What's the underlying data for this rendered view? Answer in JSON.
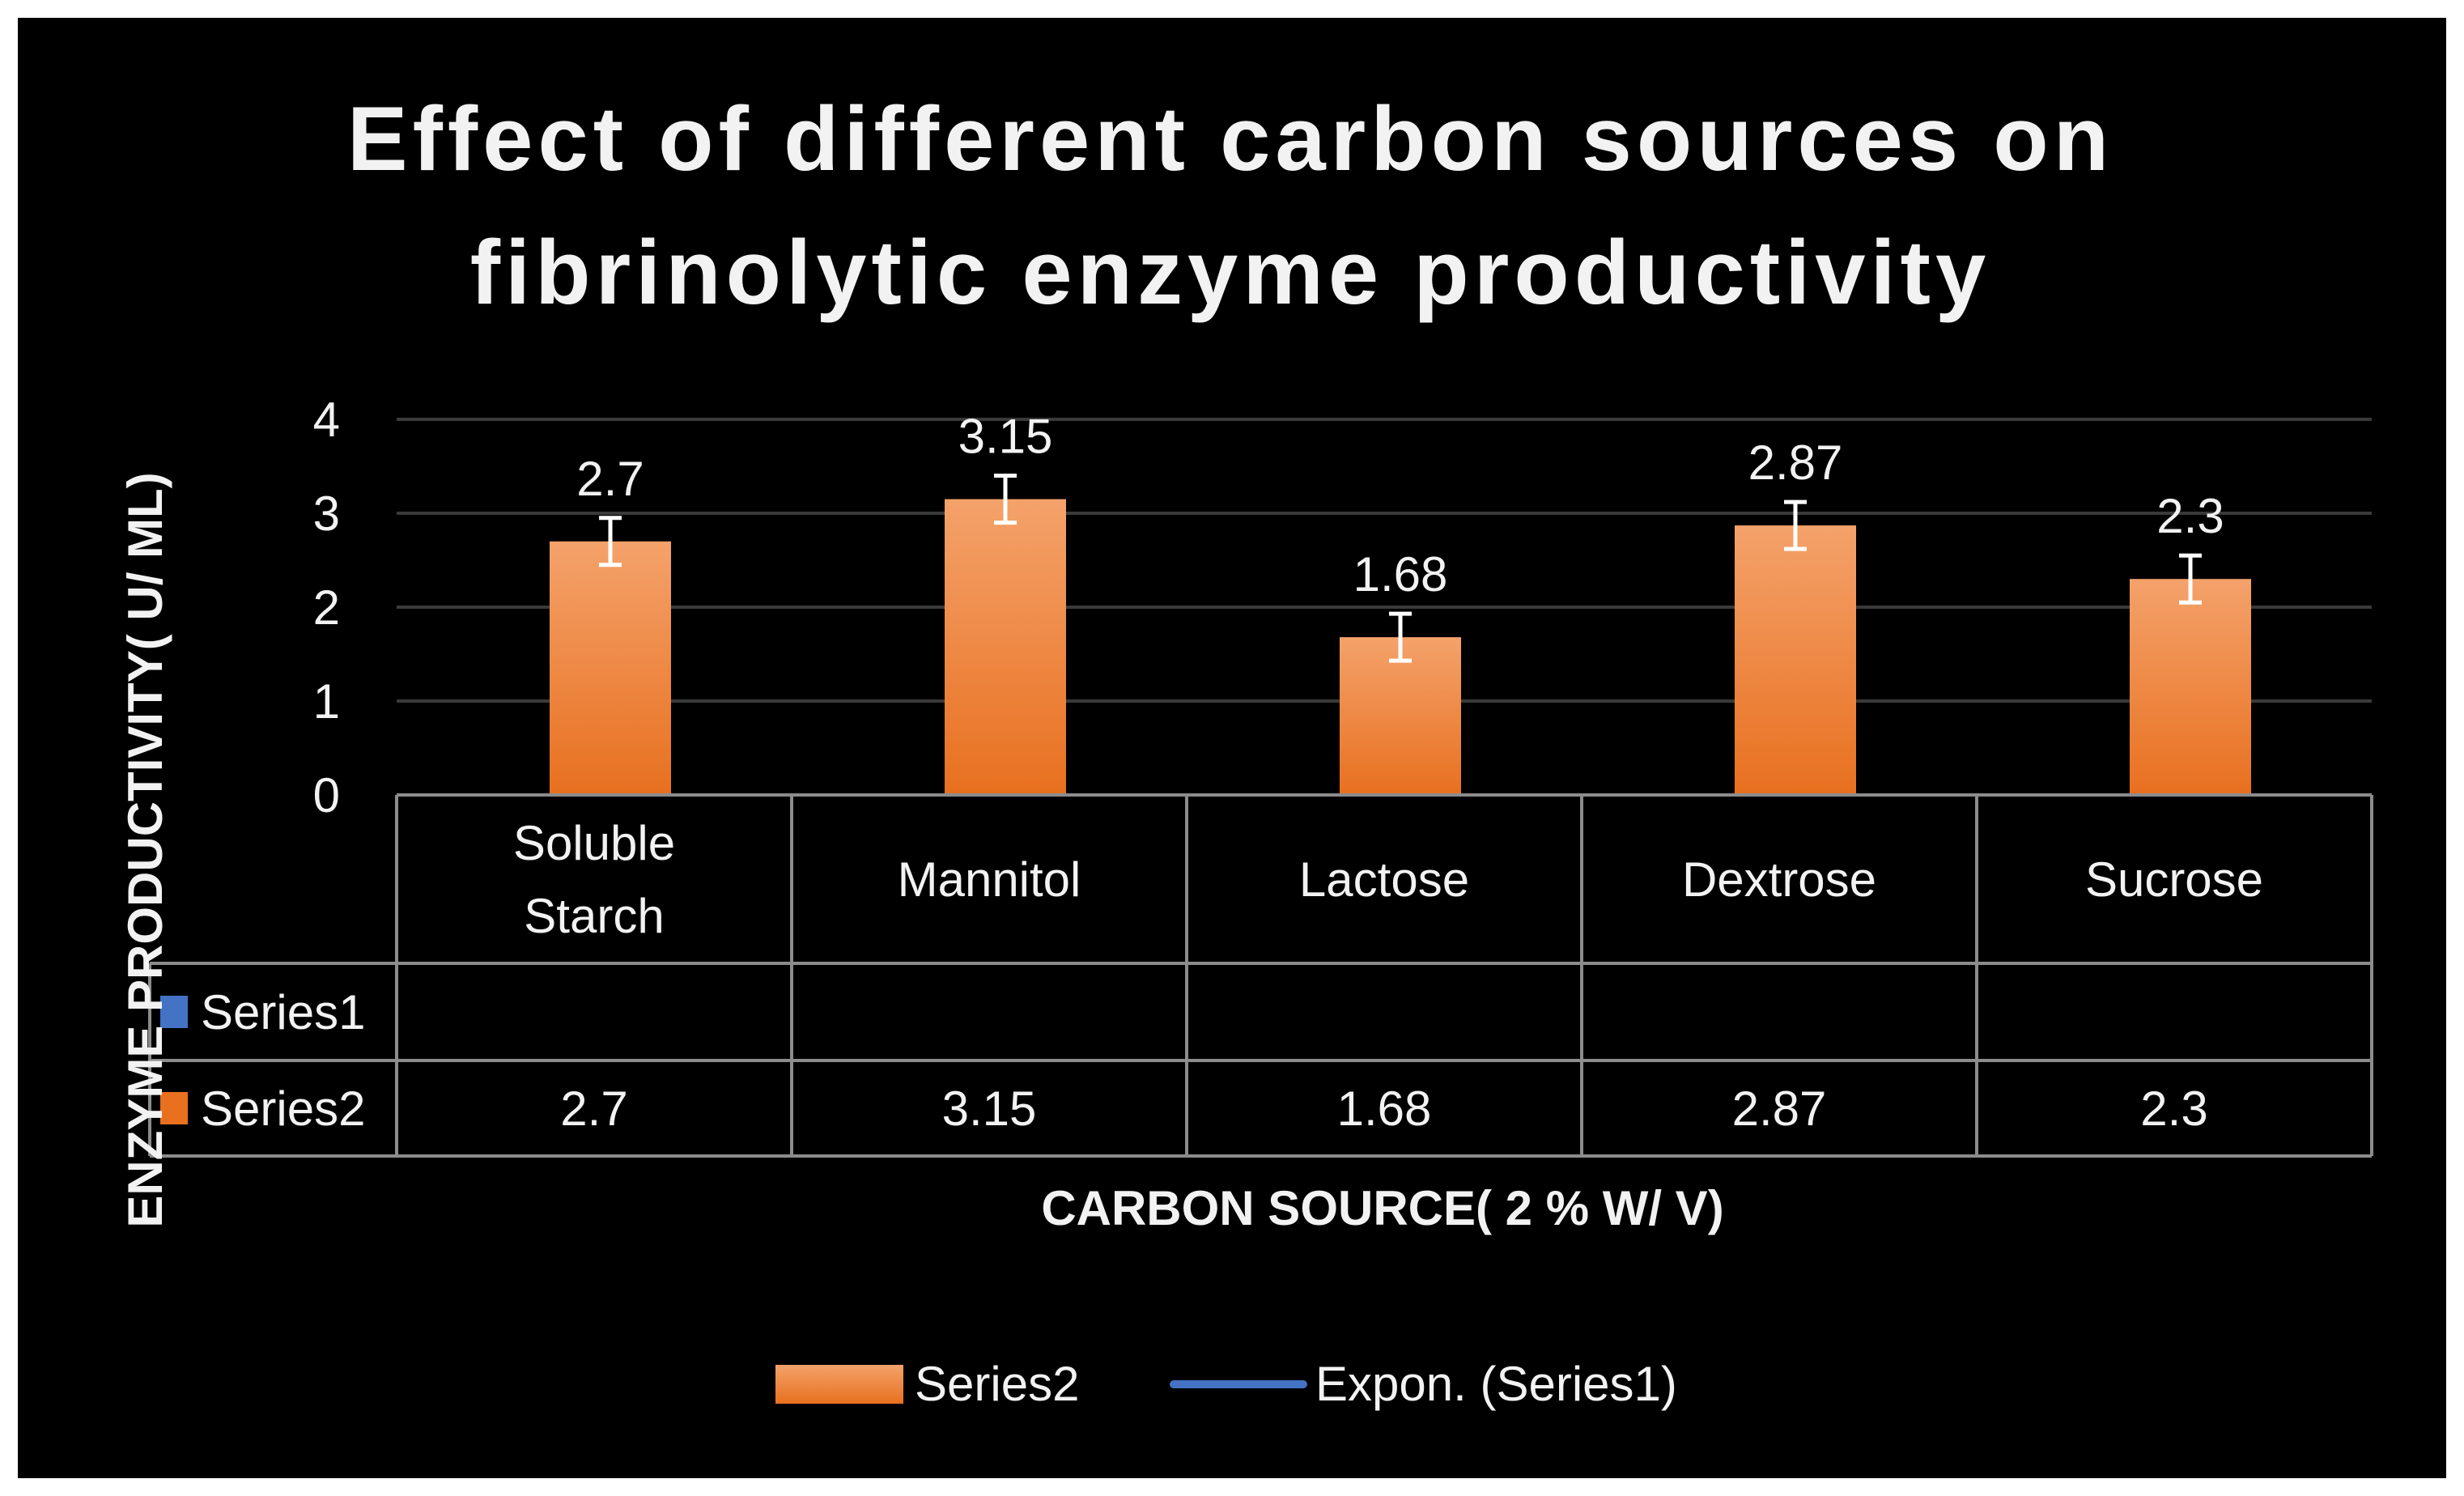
{
  "colors": {
    "background": "#000000",
    "frame": "#ffffff",
    "text": "#f2f2f2",
    "gridline": "#3a3a3a",
    "table_lines": "#8c8c8c",
    "bar_top": "#f4a26b",
    "bar_bottom": "#e8701f",
    "series1": "#4472c4",
    "error_bar": "#ffffff"
  },
  "chart_data": {
    "type": "bar",
    "title": "Effect of different carbon sources on fibrinolytic enzyme productivity",
    "title_lines": [
      "Effect of different carbon sources on",
      "fibrinolytic enzyme productivity"
    ],
    "xlabel": "CARBON SOURCE( 2 % W/ V)",
    "ylabel": "ENZYME PRODUCTIVITY( U/ ML)",
    "ylim": [
      0,
      4
    ],
    "yticks": [
      "0",
      "1",
      "2",
      "3",
      "4"
    ],
    "grid": true,
    "categories": [
      [
        "Soluble",
        "Starch"
      ],
      [
        "Mannitol"
      ],
      [
        "Lactose"
      ],
      [
        "Dextrose"
      ],
      [
        "Sucrose"
      ]
    ],
    "series": [
      {
        "name": "Series1",
        "values": [
          null,
          null,
          null,
          null,
          null
        ]
      },
      {
        "name": "Series2",
        "values": [
          2.7,
          3.15,
          1.68,
          2.87,
          2.3
        ]
      }
    ],
    "data_labels": [
      "2.7",
      "3.15",
      "1.68",
      "2.87",
      "2.3"
    ],
    "error": 0.25,
    "data_table": {
      "rows": [
        {
          "name": "Series1",
          "cells": [
            "",
            "",
            "",
            "",
            ""
          ]
        },
        {
          "name": "Series2",
          "cells": [
            "2.7",
            "3.15",
            "1.68",
            "2.87",
            "2.3"
          ]
        }
      ]
    },
    "legend": {
      "placement": "bottom",
      "items": [
        "Series2",
        "Expon. (Series1)"
      ]
    }
  }
}
